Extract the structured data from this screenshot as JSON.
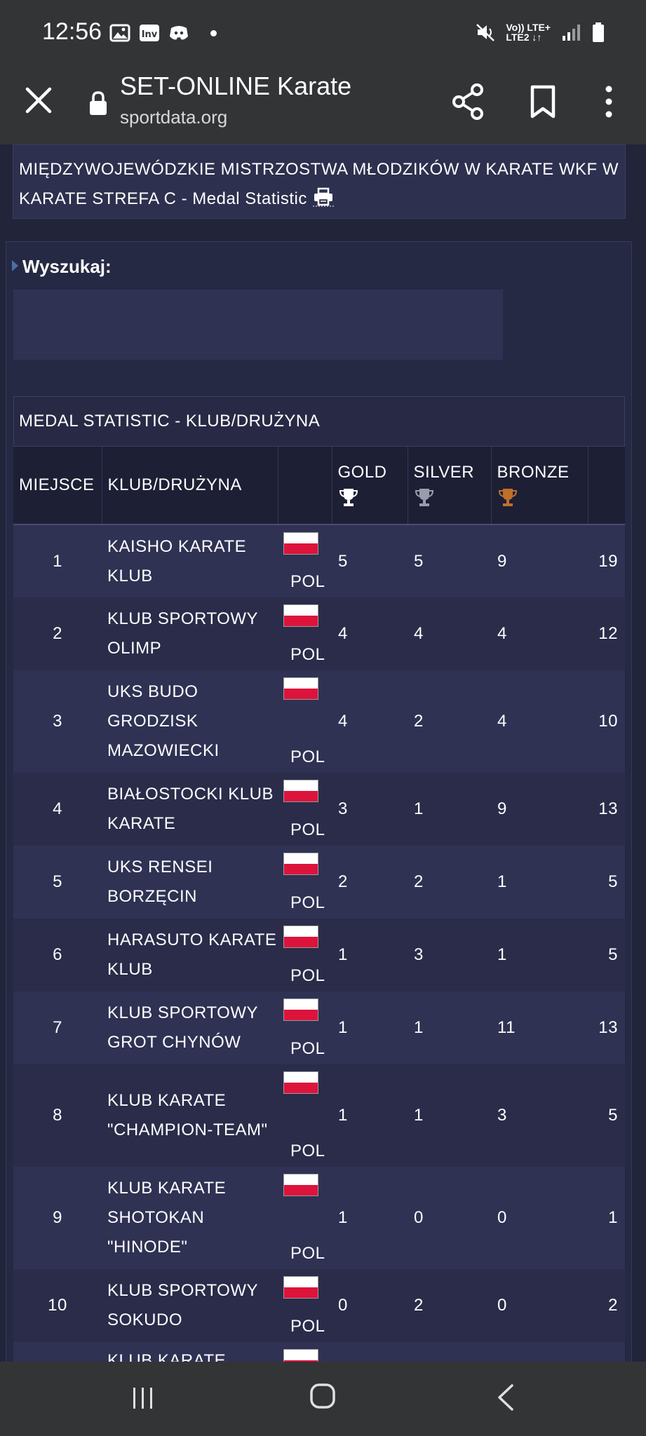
{
  "status_bar": {
    "time": "12:56",
    "network_top": "Vo)) LTE+",
    "network_bottom": "LTE2 ↓↑"
  },
  "browser": {
    "title": "SET-ONLINE Karate",
    "url": "sportdata.org"
  },
  "page": {
    "title": "MIĘDZYWOJEWÓDZKIE MISTRZOSTWA MŁODZIKÓW W KARATE WKF W KARATE STREFA C - Medal Statistic",
    "search_label": "Wyszukaj:",
    "search_value": "",
    "table": {
      "caption": "MEDAL STATISTIC - KLUB/DRUŻYNA",
      "headers": {
        "rank": "MIEJSCE",
        "club": "KLUB/DRUŻYNA",
        "nation": "",
        "gold": "GOLD",
        "silver": "SILVER",
        "bronze": "BRONZE",
        "total": ""
      },
      "rows": [
        {
          "rank": "1",
          "club": "KAISHO KARATE KLUB",
          "nation": "POL",
          "gold": "5",
          "silver": "5",
          "bronze": "9",
          "total": "19"
        },
        {
          "rank": "2",
          "club": "KLUB SPORTOWY OLIMP",
          "nation": "POL",
          "gold": "4",
          "silver": "4",
          "bronze": "4",
          "total": "12"
        },
        {
          "rank": "3",
          "club": "UKS BUDO GRODZISK MAZOWIECKI",
          "nation": "POL",
          "gold": "4",
          "silver": "2",
          "bronze": "4",
          "total": "10"
        },
        {
          "rank": "4",
          "club": "BIAŁOSTOCKI KLUB KARATE",
          "nation": "POL",
          "gold": "3",
          "silver": "1",
          "bronze": "9",
          "total": "13"
        },
        {
          "rank": "5",
          "club": "UKS RENSEI BORZĘCIN",
          "nation": "POL",
          "gold": "2",
          "silver": "2",
          "bronze": "1",
          "total": "5"
        },
        {
          "rank": "6",
          "club": "HARASUTO KARATE KLUB",
          "nation": "POL",
          "gold": "1",
          "silver": "3",
          "bronze": "1",
          "total": "5"
        },
        {
          "rank": "7",
          "club": "KLUB SPORTOWY GROT CHYNÓW",
          "nation": "POL",
          "gold": "1",
          "silver": "1",
          "bronze": "11",
          "total": "13"
        },
        {
          "rank": "8",
          "club": "KLUB KARATE \"CHAMPION-TEAM\"",
          "nation": "POL",
          "gold": "1",
          "silver": "1",
          "bronze": "3",
          "total": "5"
        },
        {
          "rank": "9",
          "club": "KLUB KARATE SHOTOKAN \"HINODE\"",
          "nation": "POL",
          "gold": "1",
          "silver": "0",
          "bronze": "0",
          "total": "1"
        },
        {
          "rank": "10",
          "club": "KLUB SPORTOWY SOKUDO",
          "nation": "POL",
          "gold": "0",
          "silver": "2",
          "bronze": "0",
          "total": "2"
        },
        {
          "rank": "",
          "club": "KLUB KARATE",
          "nation": "",
          "gold": "",
          "silver": "",
          "bronze": "",
          "total": ""
        }
      ]
    }
  },
  "colors": {
    "gold_trophy": "#ffffff",
    "silver_trophy": "#9a9cae",
    "bronze_trophy": "#c0702a",
    "flag_white": "#ffffff",
    "flag_red": "#dc143c"
  },
  "icons": {
    "browser": [
      "close-icon",
      "lock-icon",
      "share-icon",
      "bookmark-icon",
      "more-vertical-icon"
    ],
    "page": [
      "print-icon",
      "trophy-icon",
      "flag-poland-icon"
    ],
    "nav": [
      "recent-apps-icon",
      "home-icon",
      "back-icon"
    ]
  }
}
